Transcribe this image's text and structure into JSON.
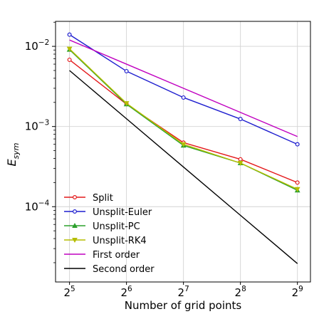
{
  "chart_data": {
    "type": "line",
    "title": "",
    "xlabel": "Number of grid points",
    "ylabel": {
      "base": "E",
      "sub": "sym"
    },
    "x_scale": "log2",
    "y_scale": "log10",
    "xlim": [
      27,
      600
    ],
    "ylim": [
      1.15e-05,
      0.0205
    ],
    "grid": true,
    "legend_position": "lower-left",
    "x": [
      32,
      64,
      128,
      256,
      512
    ],
    "x_ticks": [
      {
        "value": 32,
        "base": "2",
        "exp": "5"
      },
      {
        "value": 64,
        "base": "2",
        "exp": "6"
      },
      {
        "value": 128,
        "base": "2",
        "exp": "7"
      },
      {
        "value": 256,
        "base": "2",
        "exp": "8"
      },
      {
        "value": 512,
        "base": "2",
        "exp": "9"
      }
    ],
    "y_ticks": [
      {
        "value": 0.0001,
        "base": "10",
        "exp": "−4"
      },
      {
        "value": 0.001,
        "base": "10",
        "exp": "−3"
      },
      {
        "value": 0.01,
        "base": "10",
        "exp": "−2"
      }
    ],
    "series": [
      {
        "name": "Split",
        "color": "#e41a1c",
        "marker": "circle",
        "values": [
          0.0068,
          0.0019,
          0.00063,
          0.00039,
          0.0002
        ]
      },
      {
        "name": "Unsplit-Euler",
        "color": "#1f1fcf",
        "marker": "circle",
        "values": [
          0.014,
          0.0049,
          0.0023,
          0.00124,
          0.0006
        ]
      },
      {
        "name": "Unsplit-PC",
        "color": "#2ca02c",
        "marker": "triangle-up",
        "values": [
          0.0091,
          0.0019,
          0.00058,
          0.00035,
          0.00016
        ]
      },
      {
        "name": "Unsplit-RK4",
        "color": "#b5bd00",
        "marker": "triangle-down",
        "values": [
          0.0093,
          0.00195,
          0.0006,
          0.00035,
          0.000165
        ]
      },
      {
        "name": "First order",
        "color": "#c000c0",
        "marker": "none",
        "values": [
          0.012,
          0.006,
          0.003,
          0.0015,
          0.00075
        ]
      },
      {
        "name": "Second order",
        "color": "#000000",
        "marker": "none",
        "values": [
          0.005,
          0.00125,
          0.0003125,
          7.8e-05,
          1.95e-05
        ]
      }
    ]
  }
}
